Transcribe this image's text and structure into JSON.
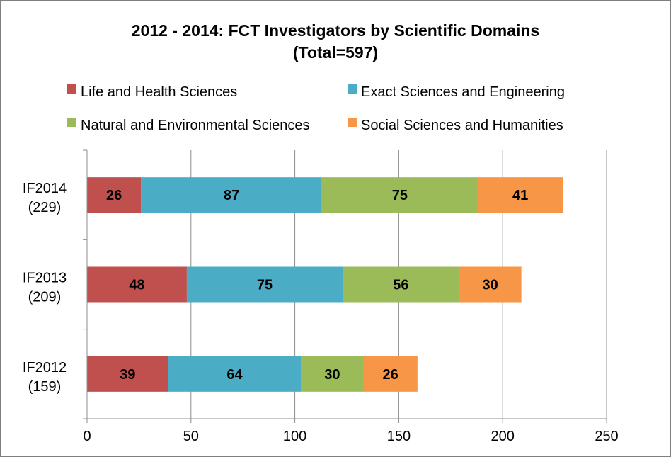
{
  "chart_data": {
    "type": "bar",
    "orientation": "horizontal",
    "stacked": true,
    "title": "2012 - 2014: FCT Investigators by Scientific Domains",
    "subtitle": "(Total=597)",
    "categories": [
      {
        "name": "IF2014",
        "total": "(229)"
      },
      {
        "name": "IF2013",
        "total": "(209)"
      },
      {
        "name": "IF2012",
        "total": "(159)"
      }
    ],
    "series": [
      {
        "name": "Life and Health Sciences",
        "color": "#c0504d",
        "values": [
          26,
          48,
          39
        ]
      },
      {
        "name": "Exact Sciences and Engineering",
        "color": "#4bacc6",
        "values": [
          87,
          75,
          64
        ]
      },
      {
        "name": "Natural and Environmental Sciences",
        "color": "#9bbb59",
        "values": [
          75,
          56,
          30
        ]
      },
      {
        "name": "Social Sciences and Humanities",
        "color": "#f79646",
        "values": [
          41,
          30,
          26
        ]
      }
    ],
    "xlim": [
      0,
      250
    ],
    "xticks": [
      0,
      50,
      100,
      150,
      200,
      250
    ],
    "grid": "vertical",
    "legend": "top"
  }
}
